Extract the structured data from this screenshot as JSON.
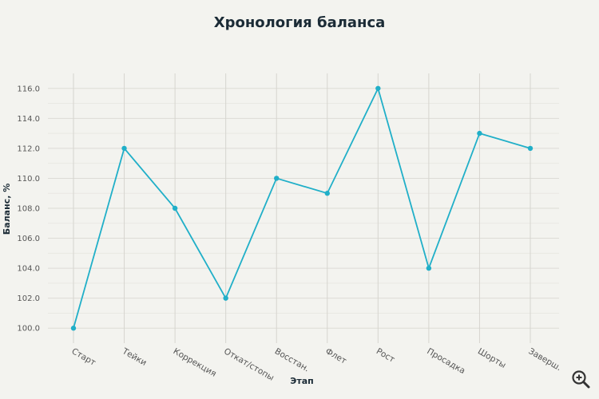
{
  "chart_data": {
    "type": "line",
    "title": "Хронология баланса",
    "xlabel": "Этап",
    "ylabel": "Баланс, %",
    "categories": [
      "Старт",
      "Тейки",
      "Коррекция",
      "Откат/стопы",
      "Восстан.",
      "Флет",
      "Рост",
      "Просадка",
      "Шорты",
      "Заверш."
    ],
    "series": [
      {
        "values": [
          100,
          112,
          108,
          102,
          110,
          109,
          116,
          104,
          113,
          112
        ]
      }
    ],
    "ylim": [
      99,
      117
    ],
    "yticks": [
      100,
      102,
      104,
      106,
      108,
      110,
      112,
      114,
      116
    ],
    "grid": true,
    "line_color": "#20afc8"
  },
  "toolbar": {
    "zoom_icon": "zoom-in-icon"
  }
}
